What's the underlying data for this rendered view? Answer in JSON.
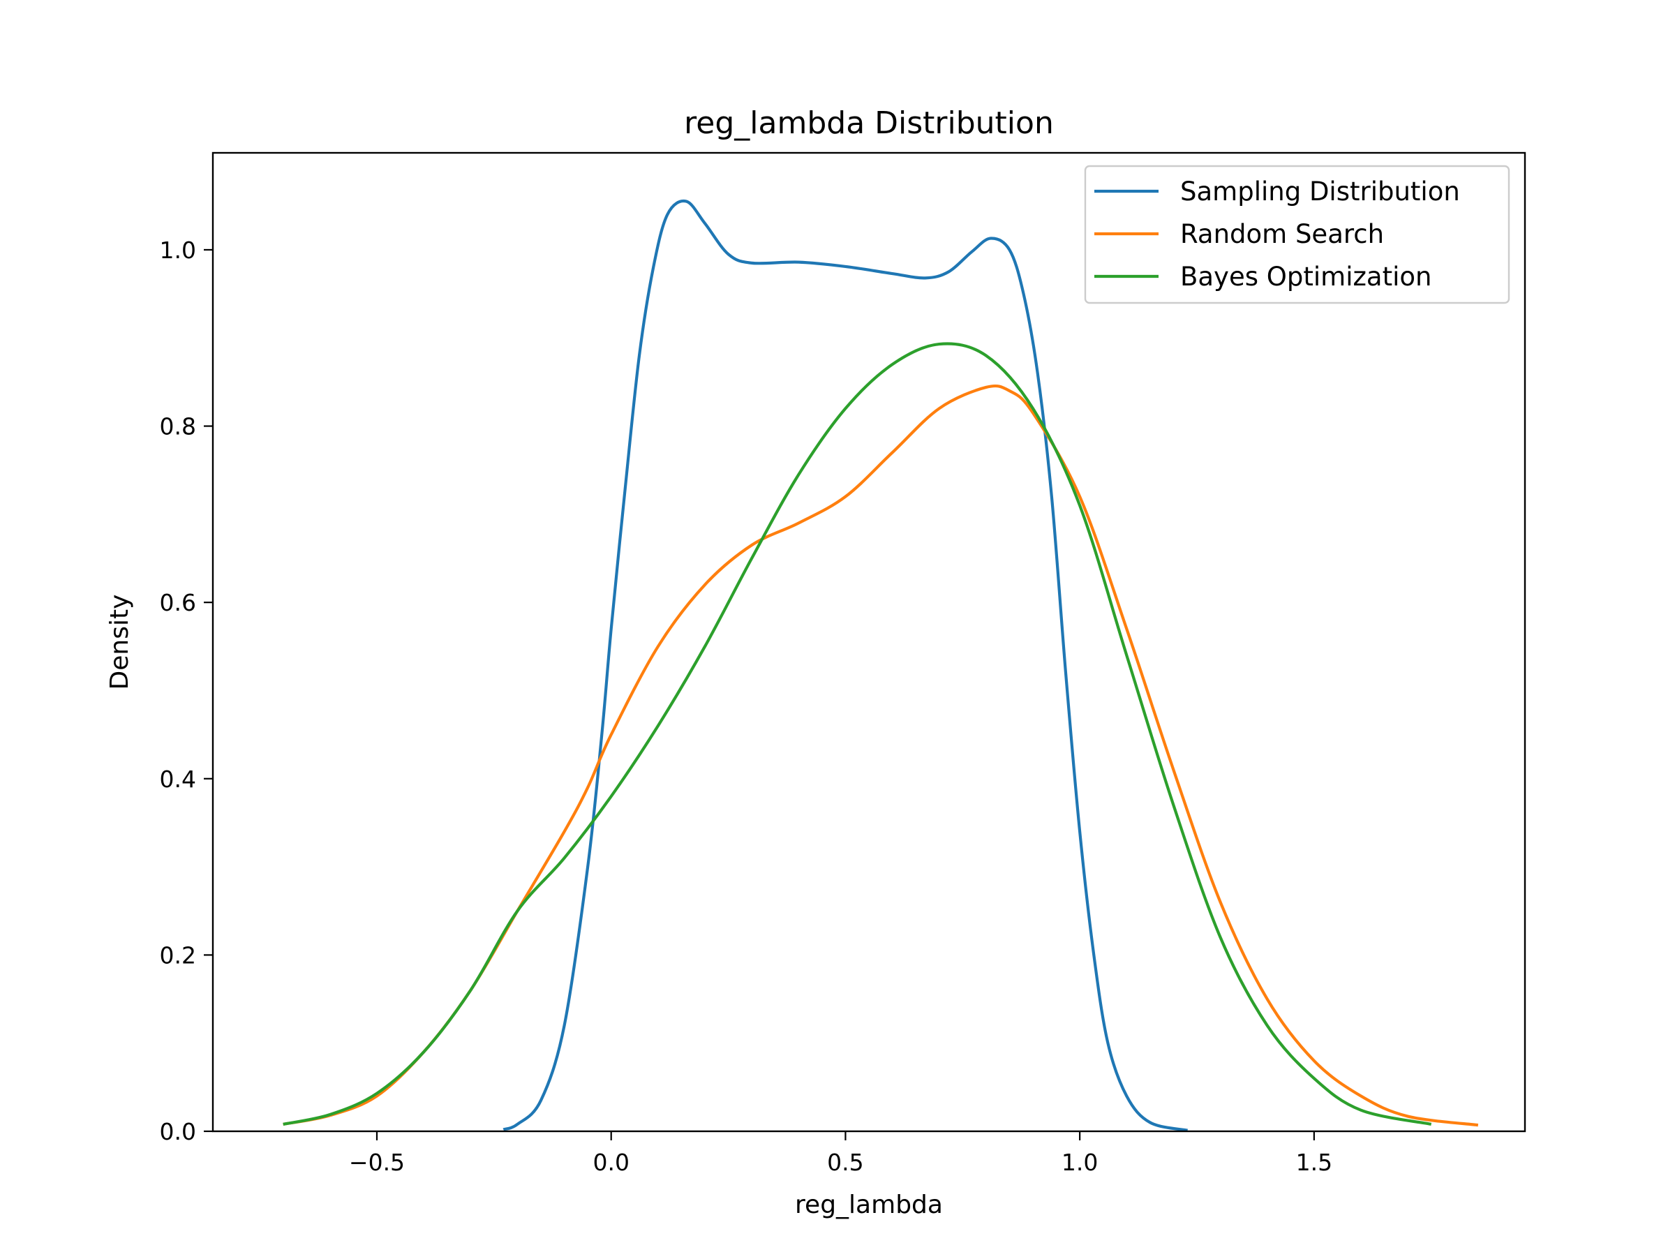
{
  "chart_data": {
    "type": "line",
    "title": "reg_lambda Distribution",
    "xlabel": "reg_lambda",
    "ylabel": "Density",
    "xlim": [
      -0.85,
      1.95
    ],
    "ylim": [
      0.0,
      1.11
    ],
    "xticks": [
      -0.5,
      0.0,
      0.5,
      1.0,
      1.5
    ],
    "xtick_labels": [
      "−0.5",
      "0.0",
      "0.5",
      "1.0",
      "1.5"
    ],
    "yticks": [
      0.0,
      0.2,
      0.4,
      0.6,
      0.8,
      1.0
    ],
    "ytick_labels": [
      "0.0",
      "0.2",
      "0.4",
      "0.6",
      "0.8",
      "1.0"
    ],
    "grid": false,
    "legend_position": "top-right",
    "series": [
      {
        "name": "Sampling Distribution",
        "color": "#1f77b4",
        "points": [
          [
            -0.23,
            0.002
          ],
          [
            -0.2,
            0.008
          ],
          [
            -0.15,
            0.035
          ],
          [
            -0.1,
            0.12
          ],
          [
            -0.05,
            0.3
          ],
          [
            -0.02,
            0.45
          ],
          [
            0.0,
            0.57
          ],
          [
            0.03,
            0.73
          ],
          [
            0.06,
            0.88
          ],
          [
            0.09,
            0.98
          ],
          [
            0.12,
            1.04
          ],
          [
            0.16,
            1.055
          ],
          [
            0.2,
            1.03
          ],
          [
            0.25,
            0.995
          ],
          [
            0.3,
            0.985
          ],
          [
            0.4,
            0.986
          ],
          [
            0.5,
            0.981
          ],
          [
            0.6,
            0.973
          ],
          [
            0.67,
            0.968
          ],
          [
            0.72,
            0.975
          ],
          [
            0.77,
            0.998
          ],
          [
            0.81,
            1.013
          ],
          [
            0.85,
            1.0
          ],
          [
            0.88,
            0.95
          ],
          [
            0.91,
            0.86
          ],
          [
            0.94,
            0.72
          ],
          [
            0.97,
            0.52
          ],
          [
            1.0,
            0.34
          ],
          [
            1.03,
            0.2
          ],
          [
            1.06,
            0.1
          ],
          [
            1.1,
            0.04
          ],
          [
            1.15,
            0.01
          ],
          [
            1.23,
            0.001
          ]
        ]
      },
      {
        "name": "Random Search",
        "color": "#ff7f0e",
        "points": [
          [
            -0.7,
            0.008
          ],
          [
            -0.6,
            0.018
          ],
          [
            -0.5,
            0.04
          ],
          [
            -0.4,
            0.09
          ],
          [
            -0.3,
            0.16
          ],
          [
            -0.2,
            0.25
          ],
          [
            -0.1,
            0.34
          ],
          [
            -0.05,
            0.39
          ],
          [
            0.0,
            0.45
          ],
          [
            0.1,
            0.55
          ],
          [
            0.2,
            0.62
          ],
          [
            0.3,
            0.665
          ],
          [
            0.4,
            0.69
          ],
          [
            0.5,
            0.72
          ],
          [
            0.6,
            0.77
          ],
          [
            0.7,
            0.82
          ],
          [
            0.8,
            0.844
          ],
          [
            0.85,
            0.84
          ],
          [
            0.9,
            0.815
          ],
          [
            1.0,
            0.72
          ],
          [
            1.1,
            0.57
          ],
          [
            1.2,
            0.41
          ],
          [
            1.3,
            0.26
          ],
          [
            1.4,
            0.15
          ],
          [
            1.5,
            0.08
          ],
          [
            1.6,
            0.04
          ],
          [
            1.7,
            0.017
          ],
          [
            1.85,
            0.007
          ]
        ]
      },
      {
        "name": "Bayes Optimization",
        "color": "#2ca02c",
        "points": [
          [
            -0.7,
            0.008
          ],
          [
            -0.6,
            0.019
          ],
          [
            -0.5,
            0.043
          ],
          [
            -0.4,
            0.09
          ],
          [
            -0.3,
            0.16
          ],
          [
            -0.2,
            0.25
          ],
          [
            -0.1,
            0.31
          ],
          [
            0.0,
            0.38
          ],
          [
            0.1,
            0.46
          ],
          [
            0.2,
            0.55
          ],
          [
            0.3,
            0.65
          ],
          [
            0.4,
            0.745
          ],
          [
            0.5,
            0.82
          ],
          [
            0.6,
            0.87
          ],
          [
            0.7,
            0.893
          ],
          [
            0.8,
            0.88
          ],
          [
            0.9,
            0.82
          ],
          [
            1.0,
            0.71
          ],
          [
            1.1,
            0.54
          ],
          [
            1.2,
            0.37
          ],
          [
            1.3,
            0.22
          ],
          [
            1.4,
            0.12
          ],
          [
            1.5,
            0.06
          ],
          [
            1.6,
            0.024
          ],
          [
            1.75,
            0.008
          ]
        ]
      }
    ]
  }
}
